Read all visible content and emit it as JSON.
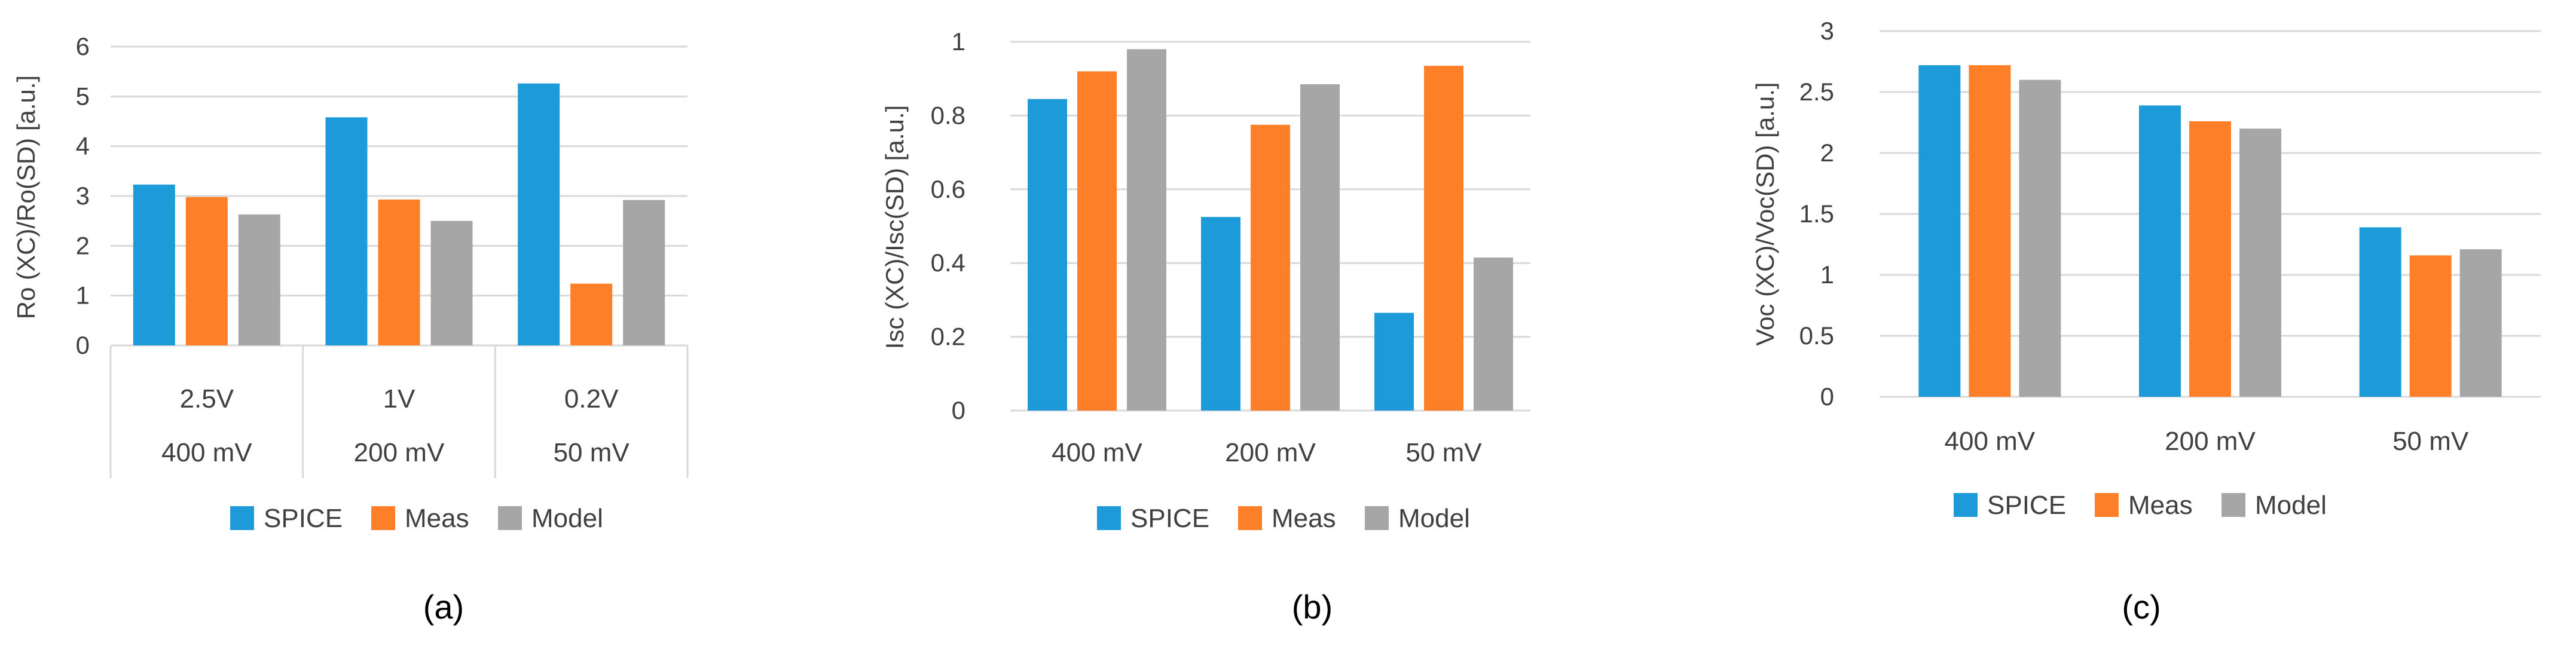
{
  "colors": {
    "spice": "#1c9bd8",
    "meas": "#fd7f28",
    "model": "#a6a6a6",
    "grid": "#d9d9d9",
    "text": "#404040"
  },
  "chart_data": [
    {
      "type": "bar",
      "panel_label": "(a)",
      "ylabel": "Ro (XC)/Ro(SD) [a.u.]",
      "ylim": [
        0,
        6
      ],
      "yticks": [
        "0",
        "1",
        "2",
        "3",
        "4",
        "5",
        "6"
      ],
      "categories": [
        "2.5V",
        "1V",
        "0.2V"
      ],
      "categories2": [
        "400 mV",
        "200 mV",
        "50 mV"
      ],
      "series": [
        {
          "name": "SPICE",
          "values": [
            3.23,
            4.58,
            5.26
          ]
        },
        {
          "name": "Meas",
          "values": [
            2.98,
            2.93,
            1.24
          ]
        },
        {
          "name": "Model",
          "values": [
            2.63,
            2.5,
            2.92
          ]
        }
      ],
      "legend_position": "bottom",
      "grid": true
    },
    {
      "type": "bar",
      "panel_label": "(b)",
      "ylabel": "Isc (XC)/Isc(SD) [a.u.]",
      "ylim": [
        0,
        1
      ],
      "yticks": [
        "0",
        "0.2",
        "0.4",
        "0.6",
        "0.8",
        "1"
      ],
      "categories": [
        "400 mV",
        "200 mV",
        "50 mV"
      ],
      "series": [
        {
          "name": "SPICE",
          "values": [
            0.845,
            0.525,
            0.265
          ]
        },
        {
          "name": "Meas",
          "values": [
            0.92,
            0.775,
            0.935
          ]
        },
        {
          "name": "Model",
          "values": [
            0.98,
            0.885,
            0.415
          ]
        }
      ],
      "legend_position": "bottom",
      "grid": true
    },
    {
      "type": "bar",
      "panel_label": "(c)",
      "ylabel": "Voc (XC)/Voc(SD) [a.u.]",
      "ylim": [
        0,
        3
      ],
      "yticks": [
        "0",
        "0.5",
        "1",
        "1.5",
        "2",
        "2.5",
        "3"
      ],
      "categories": [
        "400 mV",
        "200 mV",
        "50 mV"
      ],
      "series": [
        {
          "name": "SPICE",
          "values": [
            2.72,
            2.39,
            1.39
          ]
        },
        {
          "name": "Meas",
          "values": [
            2.72,
            2.26,
            1.16
          ]
        },
        {
          "name": "Model",
          "values": [
            2.6,
            2.2,
            1.21
          ]
        }
      ],
      "legend_position": "bottom",
      "grid": true
    }
  ]
}
